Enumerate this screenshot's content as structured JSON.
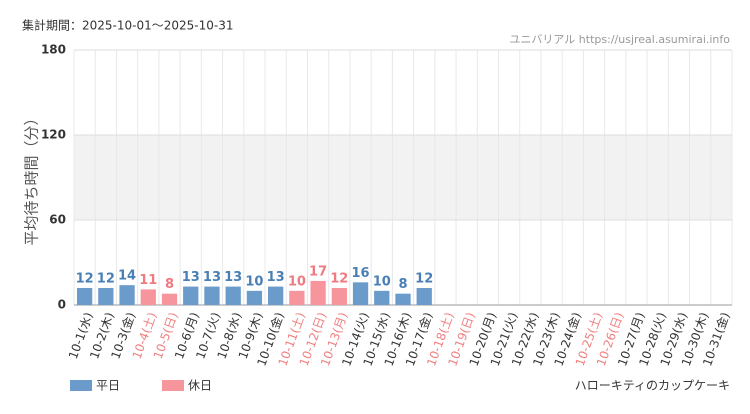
{
  "chart_data": {
    "type": "bar",
    "period": "集計期間：2025-10-01～2025-10-31",
    "source": "ユニバリアル https://usjreal.asumirai.info",
    "y_label": "平均待ち時間（分）",
    "subject": "ハローキティのカップケーキ",
    "categories": [
      "10-1(水)",
      "10-2(木)",
      "10-3(金)",
      "10-4(土)",
      "10-5(日)",
      "10-6(月)",
      "10-7(火)",
      "10-8(水)",
      "10-9(木)",
      "10-10(金)",
      "10-11(土)",
      "10-12(日)",
      "10-13(月)",
      "10-14(火)",
      "10-15(水)",
      "10-16(木)",
      "10-17(金)",
      "10-18(土)",
      "10-19(日)",
      "10-20(月)",
      "10-21(火)",
      "10-22(水)",
      "10-23(木)",
      "10-24(金)",
      "10-25(土)",
      "10-26(日)",
      "10-27(月)",
      "10-28(火)",
      "10-29(水)",
      "10-30(木)",
      "10-31(金)"
    ],
    "category_colors": [
      "#333",
      "#333",
      "#333",
      "#f08080",
      "#f08080",
      "#333",
      "#333",
      "#333",
      "#333",
      "#333",
      "#f08080",
      "#f08080",
      "#f08080",
      "#333",
      "#333",
      "#333",
      "#333",
      "#f08080",
      "#f08080",
      "#333",
      "#333",
      "#333",
      "#333",
      "#333",
      "#f08080",
      "#f08080",
      "#333",
      "#333",
      "#333",
      "#333",
      "#333"
    ],
    "series": [
      {
        "name": "平日",
        "color": "#6b9bcb",
        "label_color": "#4a7fb5",
        "values": [
          12,
          12,
          14,
          null,
          null,
          13,
          13,
          13,
          10,
          13,
          null,
          null,
          null,
          16,
          10,
          8,
          12,
          null,
          null,
          null,
          null,
          null,
          null,
          null,
          null,
          null,
          null,
          null,
          null,
          null,
          null
        ]
      },
      {
        "name": "休日",
        "color": "#f7959c",
        "label_color": "#f07a82",
        "values": [
          null,
          null,
          null,
          11,
          8,
          null,
          null,
          null,
          null,
          null,
          10,
          17,
          12,
          null,
          null,
          null,
          null,
          null,
          null,
          null,
          null,
          null,
          null,
          null,
          null,
          null,
          null,
          null,
          null,
          null,
          null
        ]
      }
    ],
    "ylim": [
      0,
      180
    ],
    "yticks": [
      0,
      60,
      120,
      180
    ],
    "shaded_band": [
      60,
      120
    ],
    "grid": true
  }
}
